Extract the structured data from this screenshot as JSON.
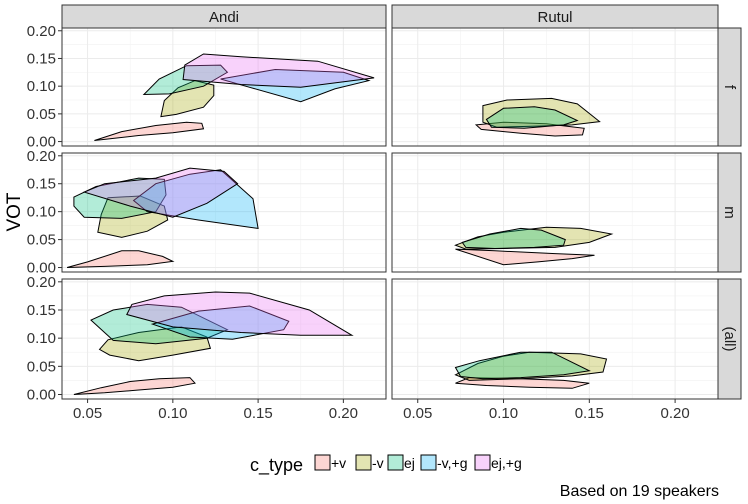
{
  "chart_data": {
    "type": "area",
    "ylabel": "VOT",
    "xlim": [
      0.035,
      0.225
    ],
    "ylim": [
      -0.008,
      0.205
    ],
    "x_ticks": [
      0.05,
      0.1,
      0.15,
      0.2
    ],
    "x_tick_labels": [
      "0.05",
      "0.10",
      "0.15",
      "0.20"
    ],
    "y_ticks": [
      0.0,
      0.05,
      0.1,
      0.15,
      0.2
    ],
    "y_tick_labels": [
      "0.00",
      "0.05",
      "0.10",
      "0.15",
      "0.20"
    ],
    "columns": [
      "Andi",
      "Rutul"
    ],
    "rows": [
      "f",
      "m",
      "(all)"
    ],
    "grid": true,
    "legend": {
      "title": "c_type",
      "position": "bottom",
      "entries": [
        {
          "label": "+v",
          "color": "#F8766D"
        },
        {
          "label": "-v",
          "color": "#A3A500"
        },
        {
          "label": "ej",
          "color": "#00BF7D"
        },
        {
          "label": "-v,+g",
          "color": "#00B0F6"
        },
        {
          "label": "ej,+g",
          "color": "#E76BF3"
        }
      ]
    },
    "caption": "Based on 19 speakers",
    "panels": [
      {
        "column": "Andi",
        "row": "f",
        "hulls": [
          {
            "c_type": "+v",
            "points": [
              [
                0.054,
                0.002
              ],
              [
                0.07,
                0.018
              ],
              [
                0.09,
                0.029
              ],
              [
                0.108,
                0.035
              ],
              [
                0.117,
                0.033
              ],
              [
                0.118,
                0.023
              ],
              [
                0.1,
                0.016
              ],
              [
                0.08,
                0.011
              ]
            ]
          },
          {
            "c_type": "-v",
            "points": [
              [
                0.093,
                0.045
              ],
              [
                0.102,
                0.049
              ],
              [
                0.118,
                0.062
              ],
              [
                0.124,
                0.083
              ],
              [
                0.124,
                0.102
              ],
              [
                0.113,
                0.11
              ],
              [
                0.103,
                0.097
              ],
              [
                0.095,
                0.074
              ]
            ]
          },
          {
            "c_type": "ej",
            "points": [
              [
                0.083,
                0.085
              ],
              [
                0.092,
                0.113
              ],
              [
                0.108,
                0.137
              ],
              [
                0.128,
                0.138
              ],
              [
                0.132,
                0.125
              ],
              [
                0.118,
                0.1
              ],
              [
                0.098,
                0.086
              ]
            ]
          },
          {
            "c_type": "-v,+g",
            "points": [
              [
                0.128,
                0.113
              ],
              [
                0.145,
                0.098
              ],
              [
                0.175,
                0.072
              ],
              [
                0.195,
                0.095
              ],
              [
                0.215,
                0.11
              ],
              [
                0.2,
                0.125
              ],
              [
                0.16,
                0.13
              ]
            ]
          },
          {
            "c_type": "ej,+g",
            "points": [
              [
                0.106,
                0.112
              ],
              [
                0.107,
                0.138
              ],
              [
                0.118,
                0.158
              ],
              [
                0.14,
                0.153
              ],
              [
                0.185,
                0.145
              ],
              [
                0.218,
                0.115
              ],
              [
                0.175,
                0.098
              ],
              [
                0.14,
                0.103
              ]
            ]
          }
        ]
      },
      {
        "column": "Rutul",
        "row": "f",
        "hulls": [
          {
            "c_type": "+v",
            "points": [
              [
                0.084,
                0.03
              ],
              [
                0.087,
                0.022
              ],
              [
                0.11,
                0.015
              ],
              [
                0.13,
                0.01
              ],
              [
                0.146,
                0.012
              ],
              [
                0.147,
                0.024
              ],
              [
                0.125,
                0.032
              ],
              [
                0.1,
                0.035
              ]
            ]
          },
          {
            "c_type": "-v",
            "points": [
              [
                0.088,
                0.065
              ],
              [
                0.102,
                0.075
              ],
              [
                0.128,
                0.078
              ],
              [
                0.143,
                0.068
              ],
              [
                0.156,
                0.036
              ],
              [
                0.14,
                0.03
              ],
              [
                0.12,
                0.028
              ],
              [
                0.096,
                0.026
              ],
              [
                0.088,
                0.035
              ]
            ]
          },
          {
            "c_type": "ej",
            "points": [
              [
                0.09,
                0.04
              ],
              [
                0.1,
                0.06
              ],
              [
                0.118,
                0.063
              ],
              [
                0.13,
                0.057
              ],
              [
                0.143,
                0.038
              ],
              [
                0.135,
                0.03
              ],
              [
                0.112,
                0.024
              ],
              [
                0.093,
                0.026
              ]
            ]
          }
        ]
      },
      {
        "column": "Andi",
        "row": "m",
        "hulls": [
          {
            "c_type": "+v",
            "points": [
              [
                0.038,
                0.0
              ],
              [
                0.05,
                0.01
              ],
              [
                0.07,
                0.03
              ],
              [
                0.08,
                0.03
              ],
              [
                0.094,
                0.02
              ],
              [
                0.1,
                0.011
              ],
              [
                0.085,
                0.005
              ],
              [
                0.06,
                0.002
              ]
            ]
          },
          {
            "c_type": "-v",
            "points": [
              [
                0.056,
                0.063
              ],
              [
                0.058,
                0.095
              ],
              [
                0.062,
                0.125
              ],
              [
                0.081,
                0.128
              ],
              [
                0.095,
                0.11
              ],
              [
                0.097,
                0.085
              ],
              [
                0.085,
                0.065
              ],
              [
                0.07,
                0.054
              ]
            ]
          },
          {
            "c_type": "ej",
            "points": [
              [
                0.042,
                0.126
              ],
              [
                0.055,
                0.145
              ],
              [
                0.08,
                0.16
              ],
              [
                0.095,
                0.158
              ],
              [
                0.096,
                0.13
              ],
              [
                0.09,
                0.1
              ],
              [
                0.07,
                0.088
              ],
              [
                0.048,
                0.09
              ],
              [
                0.042,
                0.11
              ]
            ]
          },
          {
            "c_type": "-v,+g",
            "points": [
              [
                0.077,
                0.12
              ],
              [
                0.09,
                0.15
              ],
              [
                0.11,
                0.167
              ],
              [
                0.128,
                0.175
              ],
              [
                0.147,
                0.123
              ],
              [
                0.15,
                0.07
              ],
              [
                0.115,
                0.085
              ],
              [
                0.085,
                0.1
              ]
            ]
          },
          {
            "c_type": "ej,+g",
            "points": [
              [
                0.048,
                0.135
              ],
              [
                0.06,
                0.15
              ],
              [
                0.09,
                0.16
              ],
              [
                0.11,
                0.178
              ],
              [
                0.13,
                0.172
              ],
              [
                0.138,
                0.15
              ],
              [
                0.12,
                0.115
              ],
              [
                0.1,
                0.09
              ],
              [
                0.075,
                0.11
              ]
            ]
          }
        ]
      },
      {
        "column": "Rutul",
        "row": "m",
        "hulls": [
          {
            "c_type": "+v",
            "points": [
              [
                0.072,
                0.033
              ],
              [
                0.095,
                0.03
              ],
              [
                0.13,
                0.025
              ],
              [
                0.153,
                0.022
              ],
              [
                0.14,
                0.016
              ],
              [
                0.12,
                0.01
              ],
              [
                0.1,
                0.005
              ]
            ]
          },
          {
            "c_type": "-v",
            "points": [
              [
                0.072,
                0.04
              ],
              [
                0.085,
                0.055
              ],
              [
                0.1,
                0.063
              ],
              [
                0.125,
                0.072
              ],
              [
                0.145,
                0.07
              ],
              [
                0.163,
                0.06
              ],
              [
                0.15,
                0.045
              ],
              [
                0.13,
                0.036
              ],
              [
                0.1,
                0.034
              ],
              [
                0.078,
                0.033
              ]
            ]
          },
          {
            "c_type": "ej",
            "points": [
              [
                0.076,
                0.045
              ],
              [
                0.092,
                0.06
              ],
              [
                0.11,
                0.07
              ],
              [
                0.122,
                0.067
              ],
              [
                0.136,
                0.05
              ],
              [
                0.135,
                0.04
              ],
              [
                0.118,
                0.036
              ],
              [
                0.095,
                0.034
              ],
              [
                0.078,
                0.036
              ]
            ]
          }
        ]
      },
      {
        "column": "Andi",
        "row": "(all)",
        "hulls": [
          {
            "c_type": "+v",
            "points": [
              [
                0.042,
                0.0
              ],
              [
                0.058,
                0.012
              ],
              [
                0.075,
                0.023
              ],
              [
                0.092,
                0.028
              ],
              [
                0.11,
                0.03
              ],
              [
                0.113,
                0.02
              ],
              [
                0.1,
                0.013
              ],
              [
                0.08,
                0.008
              ],
              [
                0.06,
                0.003
              ]
            ]
          },
          {
            "c_type": "-v",
            "points": [
              [
                0.057,
                0.08
              ],
              [
                0.062,
                0.097
              ],
              [
                0.08,
                0.11
              ],
              [
                0.105,
                0.12
              ],
              [
                0.12,
                0.102
              ],
              [
                0.122,
                0.082
              ],
              [
                0.1,
                0.07
              ],
              [
                0.08,
                0.06
              ],
              [
                0.063,
                0.07
              ]
            ]
          },
          {
            "c_type": "ej",
            "points": [
              [
                0.052,
                0.132
              ],
              [
                0.065,
                0.15
              ],
              [
                0.085,
                0.16
              ],
              [
                0.105,
                0.155
              ],
              [
                0.132,
                0.115
              ],
              [
                0.12,
                0.1
              ],
              [
                0.09,
                0.09
              ],
              [
                0.065,
                0.096
              ]
            ]
          },
          {
            "c_type": "-v,+g",
            "points": [
              [
                0.088,
                0.125
              ],
              [
                0.115,
                0.148
              ],
              [
                0.145,
                0.157
              ],
              [
                0.168,
                0.13
              ],
              [
                0.165,
                0.115
              ],
              [
                0.135,
                0.098
              ],
              [
                0.11,
                0.102
              ]
            ]
          },
          {
            "c_type": "ej,+g",
            "points": [
              [
                0.073,
                0.142
              ],
              [
                0.076,
                0.16
              ],
              [
                0.095,
                0.175
              ],
              [
                0.125,
                0.182
              ],
              [
                0.145,
                0.18
              ],
              [
                0.18,
                0.15
              ],
              [
                0.205,
                0.105
              ],
              [
                0.175,
                0.105
              ],
              [
                0.14,
                0.11
              ],
              [
                0.1,
                0.12
              ]
            ]
          }
        ]
      },
      {
        "column": "Rutul",
        "row": "(all)",
        "hulls": [
          {
            "c_type": "+v",
            "points": [
              [
                0.072,
                0.02
              ],
              [
                0.09,
                0.016
              ],
              [
                0.115,
                0.013
              ],
              [
                0.14,
                0.011
              ],
              [
                0.15,
                0.02
              ],
              [
                0.135,
                0.025
              ],
              [
                0.11,
                0.028
              ],
              [
                0.08,
                0.03
              ]
            ]
          },
          {
            "c_type": "-v",
            "points": [
              [
                0.072,
                0.035
              ],
              [
                0.085,
                0.055
              ],
              [
                0.1,
                0.068
              ],
              [
                0.115,
                0.075
              ],
              [
                0.145,
                0.072
              ],
              [
                0.16,
                0.063
              ],
              [
                0.158,
                0.04
              ],
              [
                0.14,
                0.033
              ],
              [
                0.11,
                0.028
              ],
              [
                0.08,
                0.025
              ]
            ]
          },
          {
            "c_type": "ej",
            "points": [
              [
                0.072,
                0.048
              ],
              [
                0.086,
                0.06
              ],
              [
                0.11,
                0.075
              ],
              [
                0.128,
                0.075
              ],
              [
                0.15,
                0.042
              ],
              [
                0.135,
                0.035
              ],
              [
                0.11,
                0.03
              ],
              [
                0.088,
                0.028
              ],
              [
                0.075,
                0.032
              ]
            ]
          }
        ]
      }
    ]
  }
}
